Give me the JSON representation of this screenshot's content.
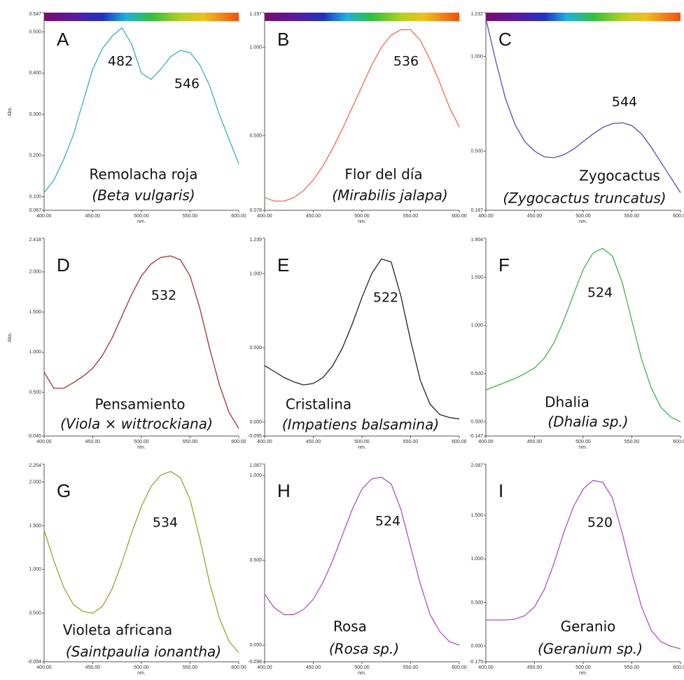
{
  "chart_data": [
    {
      "type": "line",
      "panel_label": "A",
      "peak_labels": [
        "482",
        "546"
      ],
      "name": "Remolacha roja",
      "species": "(Beta vulgaris)",
      "xlabel": "nm.",
      "ylabel": "Abs.",
      "color": "#3aaec0",
      "x": [
        400,
        410,
        420,
        430,
        440,
        450,
        460,
        470,
        480,
        490,
        500,
        510,
        520,
        530,
        540,
        550,
        560,
        570,
        580,
        590,
        600
      ],
      "values": [
        0.11,
        0.14,
        0.19,
        0.25,
        0.33,
        0.41,
        0.46,
        0.49,
        0.51,
        0.47,
        0.4,
        0.385,
        0.41,
        0.44,
        0.455,
        0.45,
        0.42,
        0.37,
        0.3,
        0.24,
        0.18
      ],
      "xlim": [
        400,
        600
      ],
      "xticks": [
        {
          "value": 400,
          "label": "400.00"
        },
        {
          "value": 450,
          "label": "450.00"
        },
        {
          "value": 500,
          "label": "500.00"
        },
        {
          "value": 550,
          "label": "550.00"
        },
        {
          "value": 600,
          "label": "600.00"
        }
      ],
      "ylim": [
        0.067,
        0.547
      ],
      "yticks": [
        0.067,
        {
          "value": 0.1,
          "label": "0.100"
        },
        {
          "value": 0.2,
          "label": "0.200"
        },
        {
          "value": 0.3,
          "label": "0.300"
        },
        {
          "value": 0.4,
          "label": "0.400"
        },
        {
          "value": 0.5,
          "label": "0.500"
        },
        0.547
      ]
    },
    {
      "type": "line",
      "panel_label": "B",
      "peak_labels": [
        "536"
      ],
      "name": "Flor del día",
      "species": "(Mirabilis jalapa)",
      "xlabel": "nm.",
      "color": "#f06a5a",
      "x": [
        400,
        410,
        420,
        430,
        440,
        450,
        460,
        470,
        480,
        490,
        500,
        510,
        520,
        530,
        540,
        550,
        560,
        570,
        580,
        590,
        600
      ],
      "values": [
        0.15,
        0.13,
        0.13,
        0.15,
        0.19,
        0.25,
        0.33,
        0.43,
        0.54,
        0.66,
        0.78,
        0.9,
        1.0,
        1.07,
        1.1,
        1.1,
        1.04,
        0.93,
        0.8,
        0.66,
        0.55
      ],
      "xlim": [
        400,
        600
      ],
      "xticks": [
        {
          "value": 400,
          "label": "400.00"
        },
        {
          "value": 450,
          "label": "450.00"
        },
        {
          "value": 500,
          "label": "500.00"
        },
        {
          "value": 550,
          "label": "550.00"
        },
        {
          "value": 600,
          "label": "600.00"
        }
      ],
      "ylim": [
        0.078,
        1.197
      ],
      "yticks": [
        0.078,
        {
          "value": 0.5,
          "label": "0.500"
        },
        {
          "value": 1,
          "label": "1.000"
        },
        1.197
      ]
    },
    {
      "type": "line",
      "panel_label": "C",
      "peak_labels": [
        "544"
      ],
      "name": "Zygocactus",
      "species": "(Zygocactus truncatus)",
      "xlabel": "nm.",
      "color": "#5050b4",
      "x": [
        400,
        410,
        420,
        430,
        440,
        450,
        460,
        470,
        480,
        490,
        500,
        510,
        520,
        530,
        540,
        550,
        560,
        570,
        580,
        590,
        600
      ],
      "values": [
        1.2,
        0.98,
        0.78,
        0.64,
        0.55,
        0.5,
        0.47,
        0.465,
        0.48,
        0.51,
        0.55,
        0.59,
        0.625,
        0.645,
        0.65,
        0.635,
        0.59,
        0.52,
        0.44,
        0.36,
        0.28
      ],
      "xlim": [
        400,
        600
      ],
      "xticks": [
        {
          "value": 400,
          "label": "400.00"
        },
        {
          "value": 450,
          "label": "450.00"
        },
        {
          "value": 500,
          "label": "500.00"
        },
        {
          "value": 550,
          "label": "550.00"
        },
        {
          "value": 600,
          "label": "600.00"
        }
      ],
      "ylim": [
        0.187,
        1.232
      ],
      "yticks": [
        0.187,
        {
          "value": 0.5,
          "label": "0.500"
        },
        {
          "value": 1,
          "label": "1.000"
        },
        1.232
      ]
    },
    {
      "type": "line",
      "panel_label": "D",
      "peak_labels": [
        "532"
      ],
      "name": "Pensamiento",
      "species": "(Viola × wittrockiana)",
      "xlabel": "nm.",
      "ylabel": "Abs.",
      "color": "#a03030",
      "x": [
        400,
        410,
        420,
        430,
        440,
        450,
        460,
        470,
        480,
        490,
        500,
        510,
        520,
        530,
        540,
        550,
        560,
        570,
        580,
        590,
        600
      ],
      "values": [
        0.75,
        0.55,
        0.55,
        0.62,
        0.7,
        0.8,
        0.96,
        1.18,
        1.45,
        1.72,
        1.95,
        2.1,
        2.18,
        2.2,
        2.15,
        1.95,
        1.55,
        1.05,
        0.6,
        0.25,
        0.05
      ],
      "xlim": [
        400,
        600
      ],
      "xticks": [
        {
          "value": 400,
          "label": "400.00"
        },
        {
          "value": 450,
          "label": "450.00"
        },
        {
          "value": 500,
          "label": "500.00"
        },
        {
          "value": 550,
          "label": "550.00"
        },
        {
          "value": 600,
          "label": "600.00"
        }
      ],
      "ylim": [
        -0.045,
        2.418
      ],
      "yticks": [
        -0.045,
        {
          "value": 0.5,
          "label": "0.500"
        },
        {
          "value": 1,
          "label": "1.000"
        },
        {
          "value": 1.5,
          "label": "1.500"
        },
        {
          "value": 2,
          "label": "2.000"
        },
        2.418
      ]
    },
    {
      "type": "line",
      "panel_label": "E",
      "peak_labels": [
        "522"
      ],
      "name": "Cristalina",
      "species": "(Impatiens balsamina)",
      "xlabel": "nm.",
      "color": "#222222",
      "x": [
        400,
        410,
        420,
        430,
        440,
        450,
        460,
        470,
        480,
        490,
        500,
        510,
        520,
        530,
        540,
        550,
        560,
        570,
        580,
        590,
        600
      ],
      "values": [
        0.38,
        0.34,
        0.3,
        0.27,
        0.25,
        0.26,
        0.3,
        0.38,
        0.5,
        0.66,
        0.84,
        1.0,
        1.1,
        1.08,
        0.85,
        0.55,
        0.28,
        0.12,
        0.05,
        0.03,
        0.02
      ],
      "xlim": [
        400,
        600
      ],
      "xticks": [
        {
          "value": 400,
          "label": "400.00"
        },
        {
          "value": 450,
          "label": "450.00"
        },
        {
          "value": 500,
          "label": "500.00"
        },
        {
          "value": 550,
          "label": "550.00"
        },
        {
          "value": 600,
          "label": "600.00"
        }
      ],
      "ylim": [
        -0.095,
        1.239
      ],
      "yticks": [
        -0.095,
        {
          "value": 0,
          "label": "0.000"
        },
        {
          "value": 0.5,
          "label": "0.500"
        },
        {
          "value": 1,
          "label": "1.000"
        },
        1.239
      ]
    },
    {
      "type": "line",
      "panel_label": "F",
      "peak_labels": [
        "524"
      ],
      "name": "Dhalia",
      "species": "(Dhalia sp.)",
      "xlabel": "nm.",
      "color": "#40b050",
      "x": [
        400,
        410,
        420,
        430,
        440,
        450,
        460,
        470,
        480,
        490,
        500,
        510,
        520,
        530,
        540,
        550,
        560,
        570,
        580,
        590,
        600
      ],
      "values": [
        0.33,
        0.37,
        0.41,
        0.45,
        0.5,
        0.56,
        0.66,
        0.82,
        1.05,
        1.32,
        1.58,
        1.75,
        1.8,
        1.72,
        1.45,
        1.05,
        0.65,
        0.35,
        0.15,
        0.05,
        0.0
      ],
      "xlim": [
        400,
        600
      ],
      "xticks": [
        {
          "value": 400,
          "label": "400.00"
        },
        {
          "value": 450,
          "label": "450.00"
        },
        {
          "value": 500,
          "label": "500.00"
        },
        {
          "value": 550,
          "label": "550.00"
        },
        {
          "value": 600,
          "label": "600.00"
        }
      ],
      "ylim": [
        -0.147,
        1.904
      ],
      "yticks": [
        -0.147,
        {
          "value": 0,
          "label": "0.000"
        },
        {
          "value": 0.5,
          "label": "0.500"
        },
        {
          "value": 1,
          "label": "1.000"
        },
        {
          "value": 1.5,
          "label": "1.500"
        },
        1.904
      ]
    },
    {
      "type": "line",
      "panel_label": "G",
      "peak_labels": [
        "534"
      ],
      "name": "Violeta africana",
      "species": "(Saintpaulia ionantha)",
      "xlabel": "nm.",
      "color": "#a0a030",
      "x": [
        400,
        410,
        420,
        430,
        440,
        450,
        460,
        470,
        480,
        490,
        500,
        510,
        520,
        530,
        540,
        550,
        560,
        570,
        580,
        590,
        600
      ],
      "values": [
        1.45,
        1.1,
        0.8,
        0.6,
        0.52,
        0.5,
        0.58,
        0.78,
        1.08,
        1.42,
        1.72,
        1.95,
        2.08,
        2.12,
        2.05,
        1.8,
        1.35,
        0.85,
        0.45,
        0.18,
        0.05
      ],
      "xlim": [
        400,
        600
      ],
      "xticks": [
        {
          "value": 400,
          "label": "400.00"
        },
        {
          "value": 450,
          "label": "450.00"
        },
        {
          "value": 500,
          "label": "500.00"
        },
        {
          "value": 550,
          "label": "550.00"
        },
        {
          "value": 600,
          "label": "600.00"
        }
      ],
      "ylim": [
        -0.054,
        2.204
      ],
      "yticks": [
        -0.054,
        {
          "value": 0.5,
          "label": "0.500"
        },
        {
          "value": 1,
          "label": "1.000"
        },
        {
          "value": 1.5,
          "label": "1.500"
        },
        {
          "value": 2,
          "label": "2.000"
        },
        2.204
      ]
    },
    {
      "type": "line",
      "panel_label": "H",
      "peak_labels": [
        "524"
      ],
      "name": "Rosa",
      "species": "(Rosa sp.)",
      "xlabel": "nm.",
      "color": "#b050c0",
      "x": [
        400,
        410,
        420,
        430,
        440,
        450,
        460,
        470,
        480,
        490,
        500,
        510,
        520,
        530,
        540,
        550,
        560,
        570,
        580,
        590,
        600
      ],
      "values": [
        0.3,
        0.22,
        0.18,
        0.18,
        0.21,
        0.27,
        0.37,
        0.5,
        0.65,
        0.8,
        0.92,
        0.98,
        0.99,
        0.95,
        0.8,
        0.58,
        0.36,
        0.18,
        0.08,
        0.02,
        0.0
      ],
      "xlim": [
        400,
        600
      ],
      "xticks": [
        {
          "value": 400,
          "label": "400.00"
        },
        {
          "value": 450,
          "label": "450.00"
        },
        {
          "value": 500,
          "label": "500.00"
        },
        {
          "value": 550,
          "label": "550.00"
        },
        {
          "value": 600,
          "label": "600.00"
        }
      ],
      "ylim": [
        -0.098,
        1.067
      ],
      "yticks": [
        -0.098,
        {
          "value": 0,
          "label": "0.000"
        },
        {
          "value": 0.5,
          "label": "0.500"
        },
        {
          "value": 1,
          "label": "1.000"
        },
        1.067
      ]
    },
    {
      "type": "line",
      "panel_label": "I",
      "peak_labels": [
        "520"
      ],
      "name": "Geranio",
      "species": "(Geranium sp.)",
      "xlabel": "nm.",
      "color": "#b050c0",
      "x": [
        400,
        410,
        420,
        430,
        440,
        450,
        460,
        470,
        480,
        490,
        500,
        510,
        520,
        530,
        540,
        550,
        560,
        570,
        580,
        590,
        600
      ],
      "values": [
        0.3,
        0.3,
        0.3,
        0.31,
        0.35,
        0.45,
        0.65,
        0.95,
        1.3,
        1.6,
        1.8,
        1.9,
        1.88,
        1.7,
        1.3,
        0.85,
        0.45,
        0.18,
        0.05,
        0.0,
        -0.03
      ],
      "xlim": [
        400,
        600
      ],
      "xticks": [
        {
          "value": 400,
          "label": "400.00"
        },
        {
          "value": 450,
          "label": "450.00"
        },
        {
          "value": 500,
          "label": "500.00"
        },
        {
          "value": 550,
          "label": "550.00"
        },
        {
          "value": 600,
          "label": "600.00"
        }
      ],
      "ylim": [
        -0.179,
        2.087
      ],
      "yticks": [
        -0.179,
        {
          "value": 0,
          "label": "0.000"
        },
        {
          "value": 0.5,
          "label": "0.500"
        },
        {
          "value": 1,
          "label": "1.000"
        },
        {
          "value": 1.5,
          "label": "1.500"
        },
        2.087
      ]
    }
  ]
}
